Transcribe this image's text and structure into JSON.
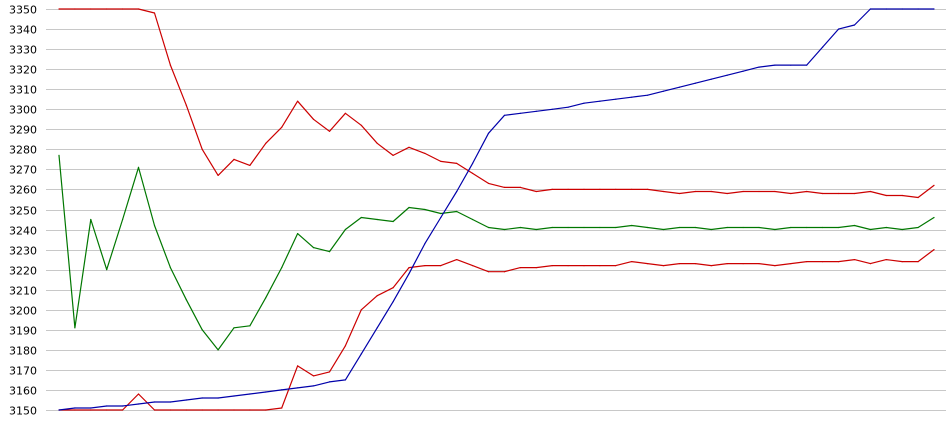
{
  "chart_data": {
    "type": "line",
    "title": "",
    "xlabel": "",
    "ylabel": "",
    "ylim": [
      3150,
      3350
    ],
    "yticks": [
      3150,
      3160,
      3170,
      3180,
      3190,
      3200,
      3210,
      3220,
      3230,
      3240,
      3250,
      3260,
      3270,
      3280,
      3290,
      3300,
      3310,
      3320,
      3330,
      3340,
      3350
    ],
    "grid": "horizontal",
    "legend": "none",
    "x": [
      0,
      1,
      2,
      3,
      4,
      5,
      6,
      7,
      8,
      9,
      10,
      11,
      12,
      13,
      14,
      15,
      16,
      17,
      18,
      19,
      20,
      21,
      22,
      23,
      24,
      25,
      26,
      27,
      28,
      29,
      30,
      31,
      32,
      33,
      34,
      35,
      36,
      37,
      38,
      39,
      40,
      41,
      42,
      43,
      44,
      45,
      46,
      47,
      48,
      49,
      50,
      51,
      52,
      53,
      54,
      55
    ],
    "series": [
      {
        "color": "#cc0000",
        "values": [
          3350,
          3350,
          3350,
          3350,
          3350,
          3350,
          3348,
          3322,
          3302,
          3280,
          3267,
          3275,
          3272,
          3283,
          3291,
          3304,
          3295,
          3289,
          3298,
          3292,
          3283,
          3277,
          3281,
          3278,
          3274,
          3273,
          3268,
          3263,
          3261,
          3261,
          3259,
          3260,
          3260,
          3260,
          3260,
          3260,
          3260,
          3260,
          3259,
          3258,
          3259,
          3259,
          3258,
          3259,
          3259,
          3259,
          3258,
          3259,
          3258,
          3258,
          3258,
          3259,
          3257,
          3257,
          3256,
          3262
        ]
      },
      {
        "color": "#007700",
        "values": [
          3277,
          3191,
          3245,
          3220,
          3245,
          3271,
          3242,
          3221,
          3205,
          3190,
          3180,
          3191,
          3192,
          3206,
          3221,
          3238,
          3231,
          3229,
          3240,
          3246,
          3245,
          3244,
          3251,
          3250,
          3248,
          3249,
          3245,
          3241,
          3240,
          3241,
          3240,
          3241,
          3241,
          3241,
          3241,
          3241,
          3242,
          3241,
          3240,
          3241,
          3241,
          3240,
          3241,
          3241,
          3241,
          3240,
          3241,
          3241,
          3241,
          3241,
          3242,
          3240,
          3241,
          3240,
          3241,
          3246
        ]
      },
      {
        "color": "#cc0000",
        "values": [
          3150,
          3150,
          3150,
          3150,
          3150,
          3158,
          3150,
          3150,
          3150,
          3150,
          3150,
          3150,
          3150,
          3150,
          3151,
          3172,
          3167,
          3169,
          3182,
          3200,
          3207,
          3211,
          3221,
          3222,
          3222,
          3225,
          3222,
          3219,
          3219,
          3221,
          3221,
          3222,
          3222,
          3222,
          3222,
          3222,
          3224,
          3223,
          3222,
          3223,
          3223,
          3222,
          3223,
          3223,
          3223,
          3222,
          3223,
          3224,
          3224,
          3224,
          3225,
          3223,
          3225,
          3224,
          3224,
          3230
        ]
      },
      {
        "color": "#0000aa",
        "values": [
          3150,
          3151,
          3151,
          3152,
          3152,
          3153,
          3154,
          3154,
          3155,
          3156,
          3156,
          3157,
          3158,
          3159,
          3160,
          3161,
          3162,
          3164,
          3165,
          3178,
          3191,
          3204,
          3218,
          3233,
          3246,
          3259,
          3273,
          3288,
          3297,
          3298,
          3299,
          3300,
          3301,
          3303,
          3304,
          3305,
          3306,
          3307,
          3309,
          3311,
          3313,
          3315,
          3317,
          3319,
          3321,
          3322,
          3322,
          3322,
          3331,
          3340,
          3342,
          3350,
          3350,
          3350,
          3350,
          3350
        ]
      }
    ]
  }
}
